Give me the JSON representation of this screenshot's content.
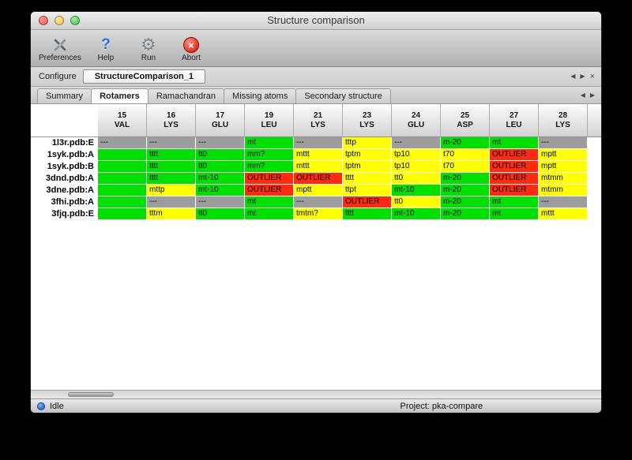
{
  "window": {
    "title": "Structure comparison"
  },
  "toolbar": {
    "buttons": [
      {
        "label": "Preferences",
        "icon": "crossed-tools-icon"
      },
      {
        "label": "Help",
        "icon": "question-mark-icon"
      },
      {
        "label": "Run",
        "icon": "gear-icon"
      },
      {
        "label": "Abort",
        "icon": "abort-circle-icon"
      }
    ],
    "gear_glyph": "⚙",
    "question_glyph": "?",
    "abort_glyph": "×"
  },
  "configure": {
    "label": "Configure",
    "tab_name": "StructureComparison_1",
    "nav_prev": "◀",
    "nav_next": "▶",
    "nav_close": "×"
  },
  "tabs": {
    "labels": [
      "Summary",
      "Rotamers",
      "Ramachandran",
      "Missing atoms",
      "Secondary structure"
    ],
    "active": "Rotamers",
    "active_index": 1,
    "nav_prev": "◀",
    "nav_next": "▶"
  },
  "table": {
    "columns": [
      {
        "num": "15",
        "res": "VAL"
      },
      {
        "num": "16",
        "res": "LYS"
      },
      {
        "num": "17",
        "res": "GLU"
      },
      {
        "num": "19",
        "res": "LEU"
      },
      {
        "num": "21",
        "res": "LYS"
      },
      {
        "num": "23",
        "res": "LYS"
      },
      {
        "num": "24",
        "res": "GLU"
      },
      {
        "num": "25",
        "res": "ASP"
      },
      {
        "num": "27",
        "res": "LEU"
      },
      {
        "num": "28",
        "res": "LYS"
      }
    ],
    "rows": [
      {
        "label": "1l3r.pdb:E",
        "cells": [
          {
            "text": "---",
            "color": "gray"
          },
          {
            "text": "---",
            "color": "gray"
          },
          {
            "text": "---",
            "color": "gray"
          },
          {
            "text": "mt",
            "color": "green"
          },
          {
            "text": "---",
            "color": "gray"
          },
          {
            "text": "tttp",
            "color": "yellow"
          },
          {
            "text": "---",
            "color": "gray"
          },
          {
            "text": "m-20",
            "color": "green"
          },
          {
            "text": "mt",
            "color": "green"
          },
          {
            "text": "---",
            "color": "gray"
          }
        ]
      },
      {
        "label": "1syk.pdb:A",
        "cells": [
          {
            "text": "",
            "color": "green"
          },
          {
            "text": "tttt",
            "color": "green"
          },
          {
            "text": "tt0",
            "color": "green"
          },
          {
            "text": "mm?",
            "color": "green"
          },
          {
            "text": "mttt",
            "color": "yellow"
          },
          {
            "text": "tptm",
            "color": "yellow"
          },
          {
            "text": "tp10",
            "color": "yellow"
          },
          {
            "text": "t70",
            "color": "yellow"
          },
          {
            "text": "OUTLIER",
            "color": "red"
          },
          {
            "text": "mptt",
            "color": "yellow"
          }
        ]
      },
      {
        "label": "1syk.pdb:B",
        "cells": [
          {
            "text": "",
            "color": "green"
          },
          {
            "text": "tttt",
            "color": "green"
          },
          {
            "text": "tt0",
            "color": "green"
          },
          {
            "text": "mm?",
            "color": "green"
          },
          {
            "text": "mttt",
            "color": "yellow"
          },
          {
            "text": "tptm",
            "color": "yellow"
          },
          {
            "text": "tp10",
            "color": "yellow"
          },
          {
            "text": "t70",
            "color": "yellow"
          },
          {
            "text": "OUTLIER",
            "color": "red"
          },
          {
            "text": "mptt",
            "color": "yellow"
          }
        ]
      },
      {
        "label": "3dnd.pdb:A",
        "cells": [
          {
            "text": "",
            "color": "green"
          },
          {
            "text": "tttt",
            "color": "green"
          },
          {
            "text": "mt-10",
            "color": "green"
          },
          {
            "text": "OUTLIER",
            "color": "red"
          },
          {
            "text": "OUTLIER",
            "color": "red"
          },
          {
            "text": "tttt",
            "color": "yellow"
          },
          {
            "text": "tt0",
            "color": "yellow"
          },
          {
            "text": "m-20",
            "color": "green"
          },
          {
            "text": "OUTLIER",
            "color": "red"
          },
          {
            "text": "mtmm",
            "color": "yellow"
          }
        ]
      },
      {
        "label": "3dne.pdb:A",
        "cells": [
          {
            "text": "",
            "color": "green"
          },
          {
            "text": "mttp",
            "color": "yellow"
          },
          {
            "text": "mt-10",
            "color": "green"
          },
          {
            "text": "OUTLIER",
            "color": "red"
          },
          {
            "text": "mptt",
            "color": "yellow"
          },
          {
            "text": "ttpt",
            "color": "yellow"
          },
          {
            "text": "mt-10",
            "color": "green"
          },
          {
            "text": "m-20",
            "color": "green"
          },
          {
            "text": "OUTLIER",
            "color": "red"
          },
          {
            "text": "mtmm",
            "color": "yellow"
          }
        ]
      },
      {
        "label": "3fhi.pdb:A",
        "cells": [
          {
            "text": "",
            "color": "green"
          },
          {
            "text": "---",
            "color": "gray"
          },
          {
            "text": "---",
            "color": "gray"
          },
          {
            "text": "mt",
            "color": "green"
          },
          {
            "text": "---",
            "color": "gray"
          },
          {
            "text": "OUTLIER",
            "color": "red"
          },
          {
            "text": "tt0",
            "color": "yellow"
          },
          {
            "text": "m-20",
            "color": "green"
          },
          {
            "text": "mt",
            "color": "green"
          },
          {
            "text": "---",
            "color": "gray"
          }
        ]
      },
      {
        "label": "3fjq.pdb:E",
        "cells": [
          {
            "text": "",
            "color": "green"
          },
          {
            "text": "tttm",
            "color": "yellow"
          },
          {
            "text": "tt0",
            "color": "green"
          },
          {
            "text": "mt",
            "color": "green"
          },
          {
            "text": "tmtm?",
            "color": "yellow"
          },
          {
            "text": "tttt",
            "color": "green"
          },
          {
            "text": "mt-10",
            "color": "green"
          },
          {
            "text": "m-20",
            "color": "green"
          },
          {
            "text": "mt",
            "color": "green"
          },
          {
            "text": "mttt",
            "color": "yellow"
          }
        ]
      }
    ]
  },
  "status": {
    "state": "Idle",
    "project": "Project: pka-compare"
  },
  "colors": {
    "green": "#00e000",
    "yellow": "#ffff00",
    "red": "#ff2b10",
    "gray": "#9d9d9d"
  }
}
